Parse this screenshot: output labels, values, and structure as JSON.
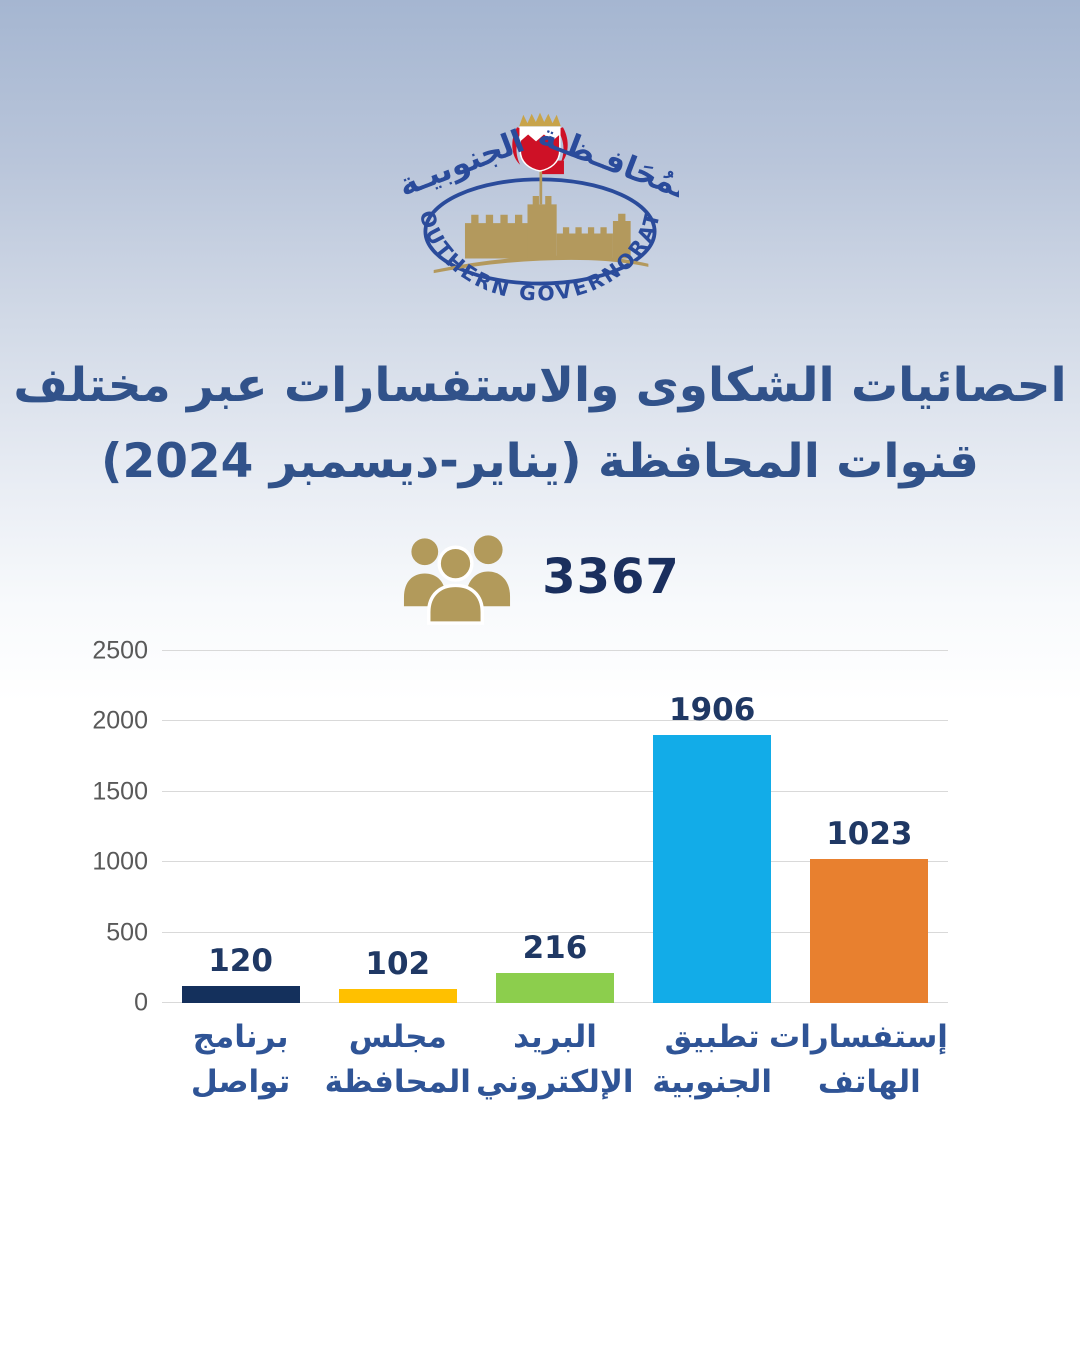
{
  "logo": {
    "arabic_right": "المُحَافـظـة",
    "arabic_left": "الجنوبيـة",
    "english": "SOUTHERN GOVERNORATE",
    "colors": {
      "blue": "#2a4b9b",
      "gold": "#b3995d",
      "red": "#ce1126",
      "crown_gold": "#c8a44a"
    }
  },
  "title": {
    "line1": "احصائيات الشكاوى والاستفسارات عبر مختلف",
    "line2": "قنوات المحافظة  (يناير-ديسمبر 2024)"
  },
  "total": {
    "value": "3367",
    "icon": "people-group-icon",
    "icon_color": "#b29a5b"
  },
  "chart_data": {
    "type": "bar",
    "categories": [
      [
        "برنامج",
        "تواصل"
      ],
      [
        "مجلس",
        "المحافظة"
      ],
      [
        "البريد",
        "الإلكتروني"
      ],
      [
        "تطبيق",
        "الجنوبية"
      ],
      [
        "إستفسارات",
        "الهاتف"
      ]
    ],
    "values": [
      120,
      102,
      216,
      1906,
      1023
    ],
    "colors": [
      "#14305c",
      "#ffc000",
      "#8cce4d",
      "#12ace8",
      "#e8802f"
    ],
    "yticks": [
      0,
      500,
      1000,
      1500,
      2000,
      2500
    ],
    "ylim": [
      0,
      2500
    ],
    "grid": true,
    "legend": "none",
    "title": "",
    "xlabel": "",
    "ylabel": "",
    "value_label_color": "#1f3864",
    "axis_tick_color": "#595959",
    "category_label_color": "#2f5496",
    "gridline_color": "#d9d9d9"
  }
}
